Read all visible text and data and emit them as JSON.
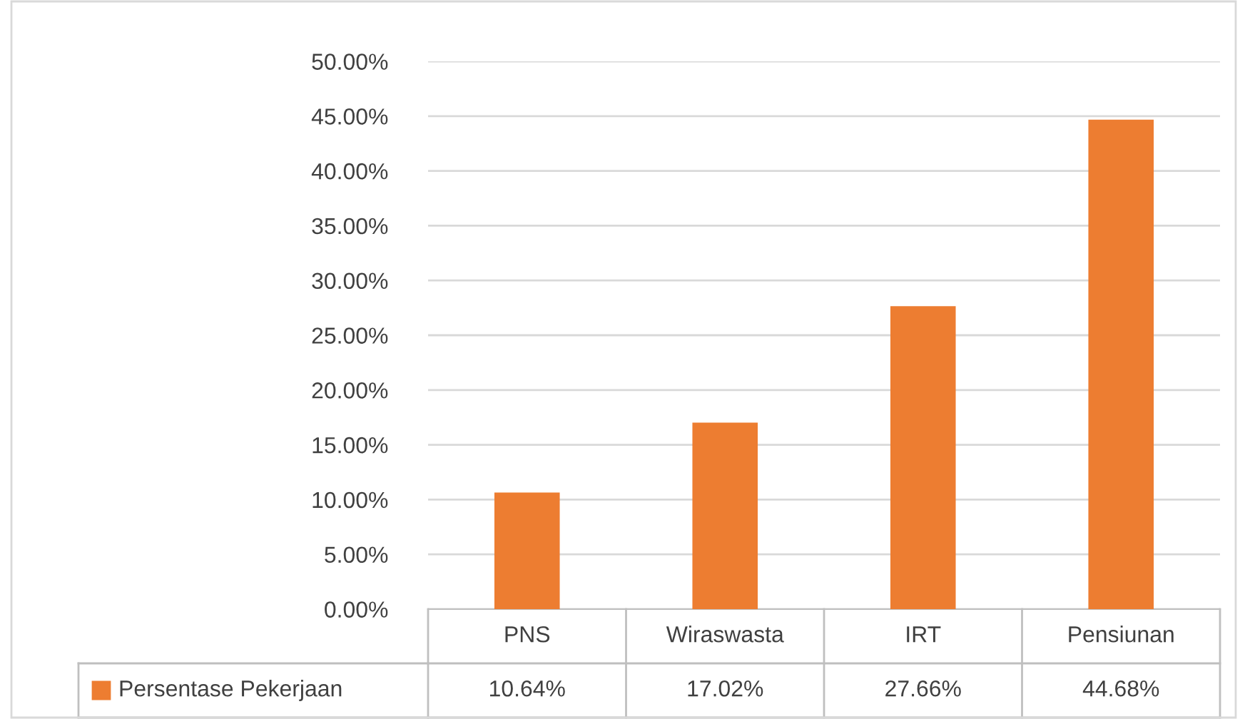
{
  "chart_data": {
    "type": "bar",
    "categories": [
      "PNS",
      "Wiraswasta",
      "IRT",
      "Pensiunan"
    ],
    "series": [
      {
        "name": "Persentase Pekerjaan",
        "color": "#ed7d31",
        "values": [
          10.64,
          17.02,
          27.66,
          44.68
        ]
      }
    ],
    "value_labels": [
      "10.64%",
      "17.02%",
      "27.66%",
      "44.68%"
    ],
    "ylim": [
      0,
      50
    ],
    "yticks": [
      {
        "value": 0,
        "label": "0.00%"
      },
      {
        "value": 5,
        "label": "5.00%"
      },
      {
        "value": 10,
        "label": "10.00%"
      },
      {
        "value": 15,
        "label": "15.00%"
      },
      {
        "value": 20,
        "label": "20.00%"
      },
      {
        "value": 25,
        "label": "25.00%"
      },
      {
        "value": 30,
        "label": "30.00%"
      },
      {
        "value": 35,
        "label": "35.00%"
      },
      {
        "value": 40,
        "label": "40.00%"
      },
      {
        "value": 45,
        "label": "45.00%"
      },
      {
        "value": 50,
        "label": "50.00%"
      }
    ],
    "grid": "y",
    "legend": "bottom"
  }
}
